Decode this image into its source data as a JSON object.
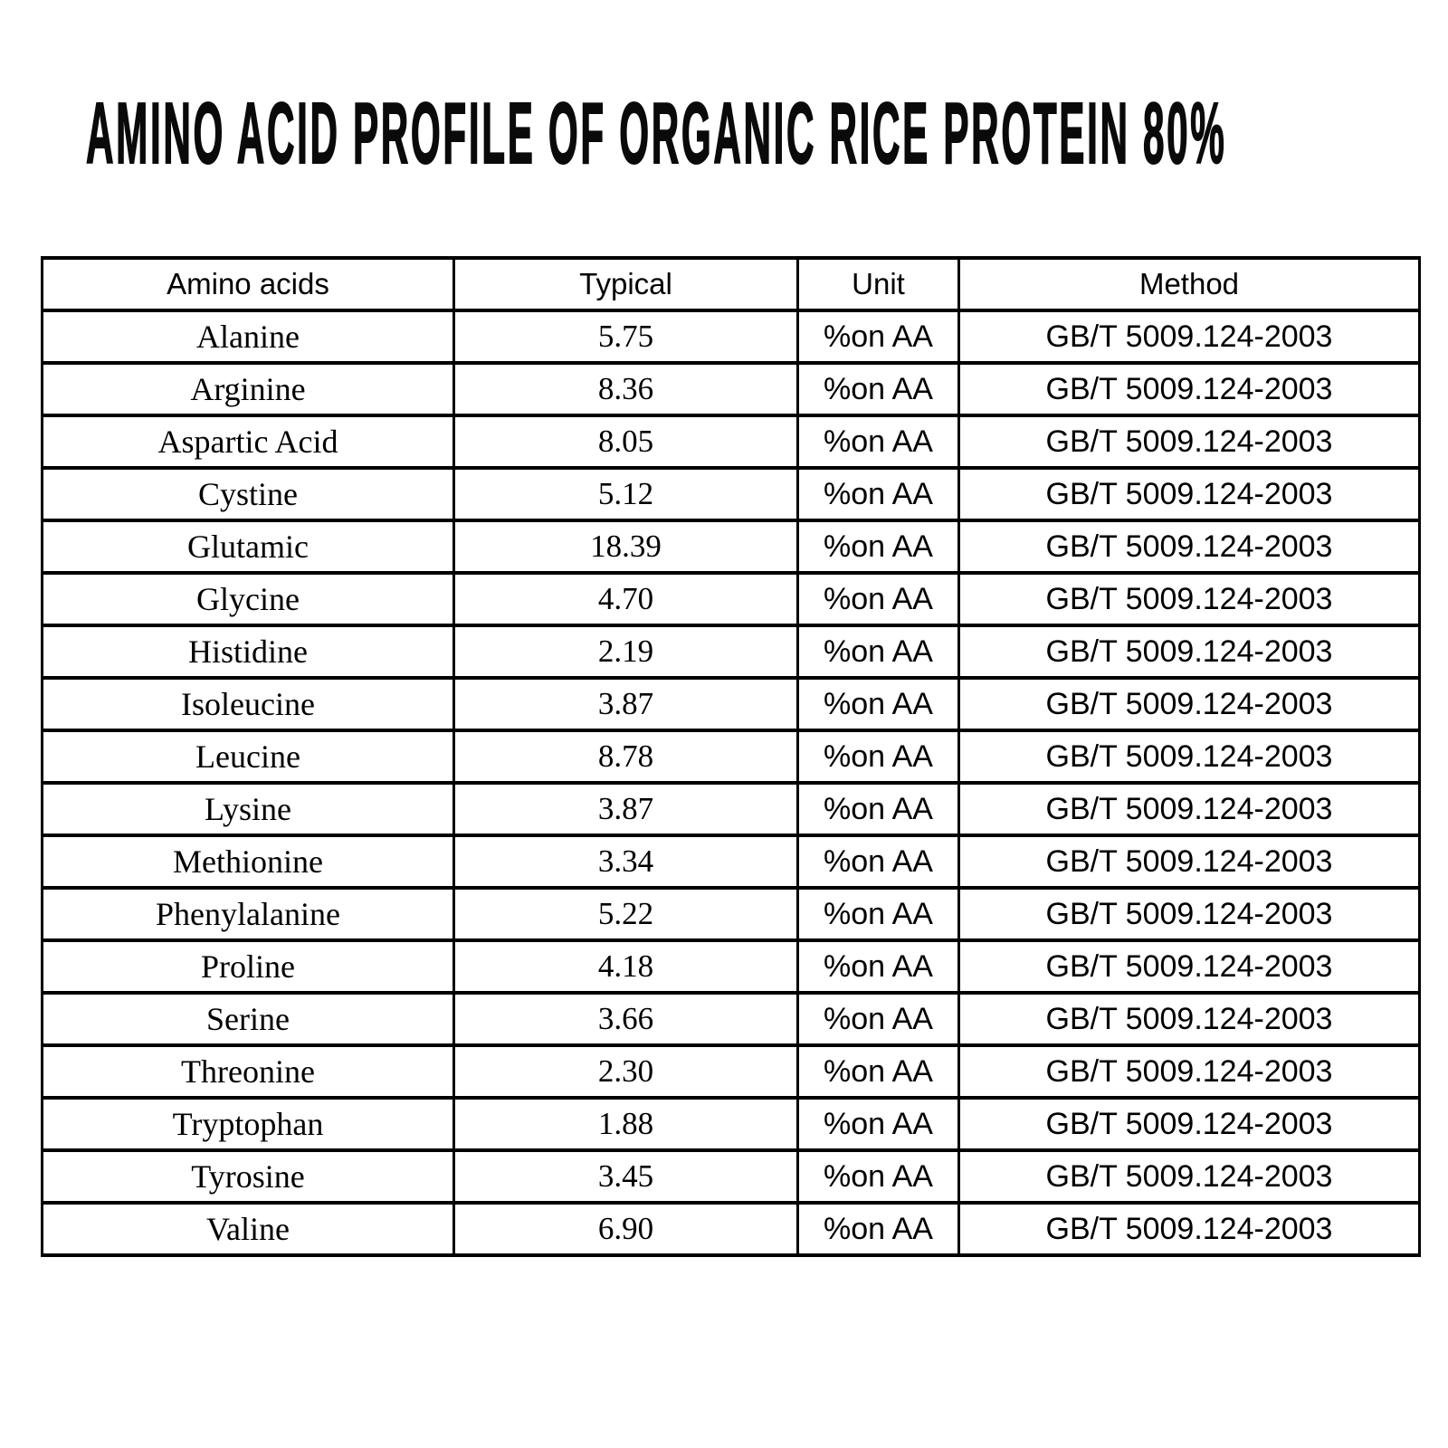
{
  "page": {
    "background_color": "#ffffff",
    "text_color": "#000000"
  },
  "title": "AMINO ACID PROFILE OF ORGANIC RICE PROTEIN 80%",
  "table": {
    "columns": [
      "Amino acids",
      "Typical",
      "Unit",
      "Method"
    ],
    "rows": [
      [
        "Alanine",
        "5.75",
        "%on AA",
        "GB/T 5009.124-2003"
      ],
      [
        "Arginine",
        "8.36",
        "%on AA",
        "GB/T 5009.124-2003"
      ],
      [
        "Aspartic Acid",
        "8.05",
        "%on AA",
        "GB/T 5009.124-2003"
      ],
      [
        "Cystine",
        "5.12",
        "%on AA",
        "GB/T 5009.124-2003"
      ],
      [
        "Glutamic",
        "18.39",
        "%on AA",
        "GB/T 5009.124-2003"
      ],
      [
        "Glycine",
        "4.70",
        "%on AA",
        "GB/T 5009.124-2003"
      ],
      [
        "Histidine",
        "2.19",
        "%on AA",
        "GB/T 5009.124-2003"
      ],
      [
        "Isoleucine",
        "3.87",
        "%on AA",
        "GB/T 5009.124-2003"
      ],
      [
        "Leucine",
        "8.78",
        "%on AA",
        "GB/T 5009.124-2003"
      ],
      [
        "Lysine",
        "3.87",
        "%on AA",
        "GB/T 5009.124-2003"
      ],
      [
        "Methionine",
        "3.34",
        "%on AA",
        "GB/T 5009.124-2003"
      ],
      [
        "Phenylalanine",
        "5.22",
        "%on AA",
        "GB/T 5009.124-2003"
      ],
      [
        "Proline",
        "4.18",
        "%on AA",
        "GB/T 5009.124-2003"
      ],
      [
        "Serine",
        "3.66",
        "%on AA",
        "GB/T 5009.124-2003"
      ],
      [
        "Threonine",
        "2.30",
        "%on AA",
        "GB/T 5009.124-2003"
      ],
      [
        "Tryptophan",
        "1.88",
        "%on AA",
        "GB/T 5009.124-2003"
      ],
      [
        "Tyrosine",
        "3.45",
        "%on AA",
        "GB/T 5009.124-2003"
      ],
      [
        "Valine",
        "6.90",
        "%on AA",
        "GB/T 5009.124-2003"
      ]
    ]
  }
}
